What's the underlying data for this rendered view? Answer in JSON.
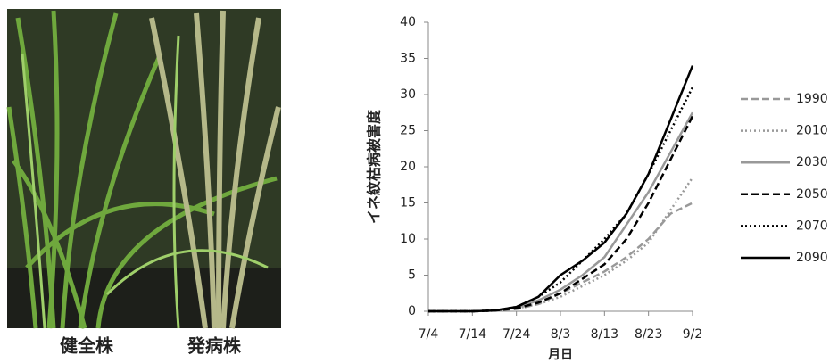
{
  "photo": {
    "labels": [
      "健全株",
      "発病株"
    ]
  },
  "chart_data": {
    "type": "line",
    "y_label": "イネ紋枯病被害度",
    "x_label": "月日",
    "x": [
      "7/4",
      "7/9",
      "7/14",
      "7/19",
      "7/24",
      "7/29",
      "8/3",
      "8/8",
      "8/13",
      "8/18",
      "8/23",
      "8/28",
      "9/2"
    ],
    "xticks": [
      "7/4",
      "7/14",
      "7/24",
      "8/3",
      "8/13",
      "8/23",
      "9/2"
    ],
    "ylim": [
      0,
      40
    ],
    "yticks": [
      0,
      5,
      10,
      15,
      20,
      25,
      30,
      35,
      40
    ],
    "legend": "right",
    "series": [
      {
        "name": "1990",
        "color": "#999999",
        "dash": "dashed",
        "values": [
          0,
          0,
          0,
          0.1,
          0.3,
          1,
          2.5,
          4,
          5.5,
          7.5,
          10,
          13.5,
          15
        ]
      },
      {
        "name": "2010",
        "color": "#999999",
        "dash": "dotted",
        "values": [
          0,
          0,
          0,
          0.1,
          0.4,
          1,
          2,
          3.5,
          5,
          7,
          9.5,
          14,
          18.5
        ]
      },
      {
        "name": "2030",
        "color": "#999999",
        "dash": "solid",
        "values": [
          0,
          0,
          0,
          0.1,
          0.5,
          1.5,
          3,
          5,
          7.5,
          12,
          16.5,
          22,
          27.5
        ]
      },
      {
        "name": "2050",
        "color": "#000000",
        "dash": "dashed",
        "values": [
          0,
          0,
          0,
          0.1,
          0.4,
          1.2,
          2.5,
          4.5,
          6.5,
          10,
          15,
          21,
          27
        ]
      },
      {
        "name": "2070",
        "color": "#000000",
        "dash": "dotted",
        "values": [
          0,
          0,
          0,
          0.1,
          0.6,
          2,
          4,
          7,
          10,
          13.5,
          19,
          25,
          31
        ]
      },
      {
        "name": "2090",
        "color": "#000000",
        "dash": "solid",
        "values": [
          0,
          0,
          0,
          0.1,
          0.6,
          2,
          5,
          7,
          9.5,
          13.5,
          19,
          26.5,
          34
        ]
      }
    ]
  }
}
